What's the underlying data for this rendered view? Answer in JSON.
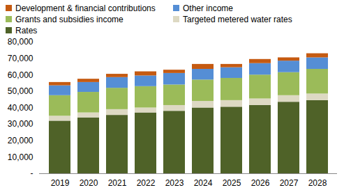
{
  "chart_data": {
    "type": "bar",
    "stacked": true,
    "categories": [
      "2019",
      "2020",
      "2021",
      "2022",
      "2023",
      "2024",
      "2025",
      "2026",
      "2027",
      "2028"
    ],
    "series": [
      {
        "name": "Rates",
        "color": "#4f6228",
        "values": [
          32000,
          34000,
          35500,
          37000,
          38000,
          40000,
          40500,
          41500,
          43500,
          44500
        ]
      },
      {
        "name": "Targeted metered water rates",
        "color": "#ddd9c3",
        "values": [
          3000,
          3000,
          3500,
          3000,
          3500,
          4000,
          4000,
          4000,
          4000,
          4000
        ]
      },
      {
        "name": "Grants and subsidies income",
        "color": "#9bbb59",
        "values": [
          12500,
          12500,
          13000,
          13000,
          12500,
          13000,
          13500,
          14500,
          14000,
          15000
        ]
      },
      {
        "name": "Other income",
        "color": "#558ed5",
        "values": [
          6000,
          6000,
          6500,
          6500,
          7000,
          6500,
          6500,
          7000,
          7000,
          7000
        ]
      },
      {
        "name": "Development & financial contributions",
        "color": "#c55a11",
        "values": [
          2000,
          2000,
          2000,
          2500,
          2000,
          3000,
          2000,
          2500,
          2000,
          2500
        ]
      }
    ],
    "ylim": [
      0,
      80000
    ],
    "yticks": [
      {
        "value": 0,
        "label": "-"
      },
      {
        "value": 10000,
        "label": "10,000"
      },
      {
        "value": 20000,
        "label": "20,000"
      },
      {
        "value": 30000,
        "label": "30,000"
      },
      {
        "value": 40000,
        "label": "40,000"
      },
      {
        "value": 50000,
        "label": "50,000"
      },
      {
        "value": 60000,
        "label": "60,000"
      },
      {
        "value": 70000,
        "label": "70,000"
      },
      {
        "value": 80000,
        "label": "80,000"
      }
    ],
    "legend": "top",
    "grid": false
  }
}
